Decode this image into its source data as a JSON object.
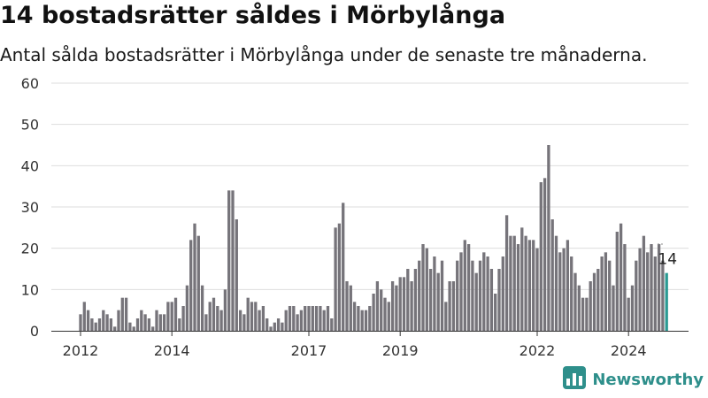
{
  "header": {
    "title": "14 bostadsrätter såldes i Mörbylånga",
    "subtitle": "Antal sålda bostadsrätter i Mörbylånga under de senaste tre månaderna."
  },
  "brand": {
    "name": "Newsworthy",
    "logo_icon": "bar-chart-logo-icon",
    "color": "#2e8f8b"
  },
  "colors": {
    "bar": "#76747a",
    "highlight": "#2a9a93",
    "grid": "#dddddd",
    "axis": "#333333"
  },
  "chart_data": {
    "type": "bar",
    "title": "14 bostadsrätter såldes i Mörbylånga",
    "subtitle": "Antal sålda bostadsrätter i Mörbylånga under de senaste tre månaderna.",
    "xlabel": "",
    "ylabel": "",
    "ylim": [
      0,
      60
    ],
    "yticks": [
      0,
      10,
      20,
      30,
      40,
      50,
      60
    ],
    "xticks": [
      {
        "label": "2012",
        "at": "2012-01"
      },
      {
        "label": "2014",
        "at": "2014-01"
      },
      {
        "label": "2017",
        "at": "2017-01"
      },
      {
        "label": "2019",
        "at": "2019-01"
      },
      {
        "label": "2022",
        "at": "2022-01"
      },
      {
        "label": "2024",
        "at": "2024-01"
      }
    ],
    "grid": true,
    "first_month": "2012-01",
    "last_month": "2024-11",
    "values": [
      4,
      7,
      5,
      3,
      2,
      3,
      5,
      4,
      3,
      1,
      5,
      8,
      8,
      2,
      1,
      3,
      5,
      4,
      3,
      1,
      5,
      4,
      4,
      7,
      7,
      8,
      3,
      6,
      11,
      22,
      26,
      23,
      11,
      4,
      7,
      8,
      6,
      5,
      10,
      34,
      34,
      27,
      5,
      4,
      8,
      7,
      7,
      5,
      6,
      3,
      1,
      2,
      3,
      2,
      5,
      6,
      6,
      4,
      5,
      6,
      6,
      6,
      6,
      6,
      5,
      6,
      3,
      25,
      26,
      31,
      12,
      11,
      7,
      6,
      5,
      5,
      6,
      9,
      12,
      10,
      8,
      7,
      12,
      11,
      13,
      13,
      15,
      12,
      15,
      17,
      21,
      20,
      15,
      18,
      14,
      17,
      7,
      12,
      12,
      17,
      19,
      22,
      21,
      17,
      14,
      17,
      19,
      18,
      15,
      9,
      15,
      18,
      28,
      23,
      23,
      21,
      25,
      23,
      22,
      22,
      20,
      36,
      37,
      45,
      27,
      23,
      19,
      20,
      22,
      18,
      14,
      11,
      8,
      8,
      12,
      14,
      15,
      18,
      19,
      17,
      11,
      24,
      26,
      21,
      8,
      11,
      17,
      20,
      23,
      19,
      21,
      18,
      21,
      17,
      14
    ],
    "highlight": {
      "index": 154,
      "value": 14,
      "label": "14"
    },
    "dashed_reference": {
      "value": 21,
      "span": 2
    }
  }
}
